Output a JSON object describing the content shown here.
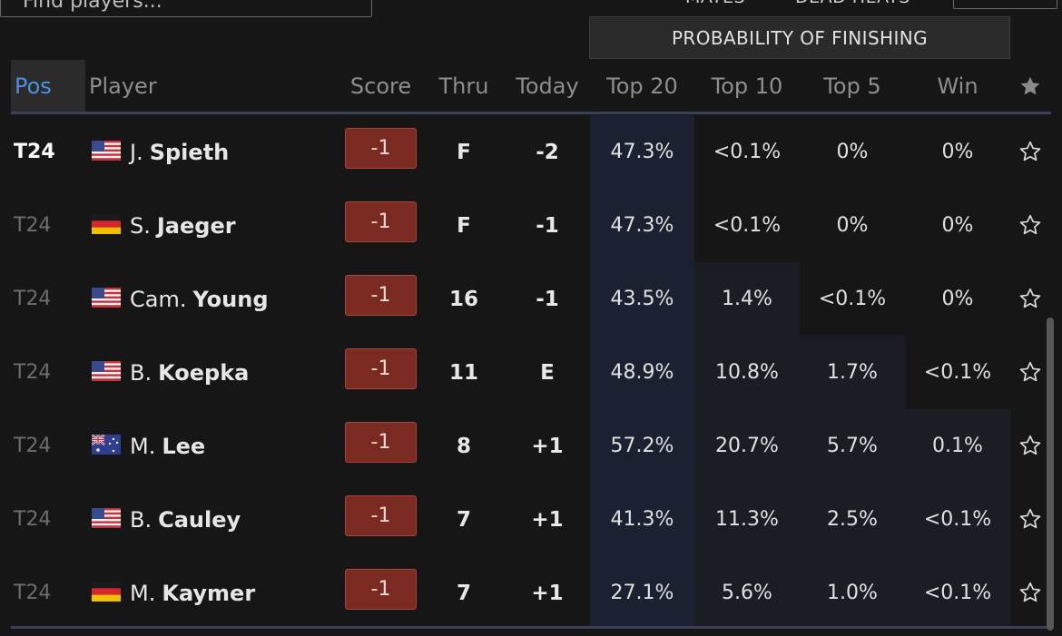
{
  "search": {
    "placeholder": "Find players..."
  },
  "top_controls": {
    "mates_label": "MATES",
    "dead_heats_label": "DEAD HEATS"
  },
  "probability_header": "PROBABILITY OF FINISHING",
  "columns": {
    "pos": "Pos",
    "player": "Player",
    "score": "Score",
    "thru": "Thru",
    "today": "Today",
    "top20": "Top 20",
    "top10": "Top 10",
    "top5": "Top 5",
    "win": "Win"
  },
  "rows": [
    {
      "pos": "T24",
      "first": "J.",
      "last": "Spieth",
      "flag": "usa",
      "score": "-1",
      "thru": "F",
      "today": "-2",
      "top20": "47.3%",
      "top10": "<0.1%",
      "top5": "0%",
      "win": "0%"
    },
    {
      "pos": "T24",
      "first": "S.",
      "last": "Jaeger",
      "flag": "germany",
      "score": "-1",
      "thru": "F",
      "today": "-1",
      "top20": "47.3%",
      "top10": "<0.1%",
      "top5": "0%",
      "win": "0%"
    },
    {
      "pos": "T24",
      "first": "Cam.",
      "last": "Young",
      "flag": "usa",
      "score": "-1",
      "thru": "16",
      "today": "-1",
      "top20": "43.5%",
      "top10": "1.4%",
      "top5": "<0.1%",
      "win": "0%"
    },
    {
      "pos": "T24",
      "first": "B.",
      "last": "Koepka",
      "flag": "usa",
      "score": "-1",
      "thru": "11",
      "today": "E",
      "top20": "48.9%",
      "top10": "10.8%",
      "top5": "1.7%",
      "win": "<0.1%"
    },
    {
      "pos": "T24",
      "first": "M.",
      "last": "Lee",
      "flag": "australia",
      "score": "-1",
      "thru": "8",
      "today": "+1",
      "top20": "57.2%",
      "top10": "20.7%",
      "top5": "5.7%",
      "win": "0.1%"
    },
    {
      "pos": "T24",
      "first": "B.",
      "last": "Cauley",
      "flag": "usa",
      "score": "-1",
      "thru": "7",
      "today": "+1",
      "top20": "41.3%",
      "top10": "11.3%",
      "top5": "2.5%",
      "win": "<0.1%"
    },
    {
      "pos": "T24",
      "first": "M.",
      "last": "Kaymer",
      "flag": "germany",
      "score": "-1",
      "thru": "7",
      "today": "+1",
      "top20": "27.1%",
      "top10": "5.6%",
      "top5": "1.0%",
      "win": "<0.1%"
    }
  ],
  "colors": {
    "background": "#161616",
    "accent_blue": "#4f8fe0",
    "score_bg": "#7b2a22",
    "highlight_column": "#1b2130",
    "rule": "#38415c"
  }
}
